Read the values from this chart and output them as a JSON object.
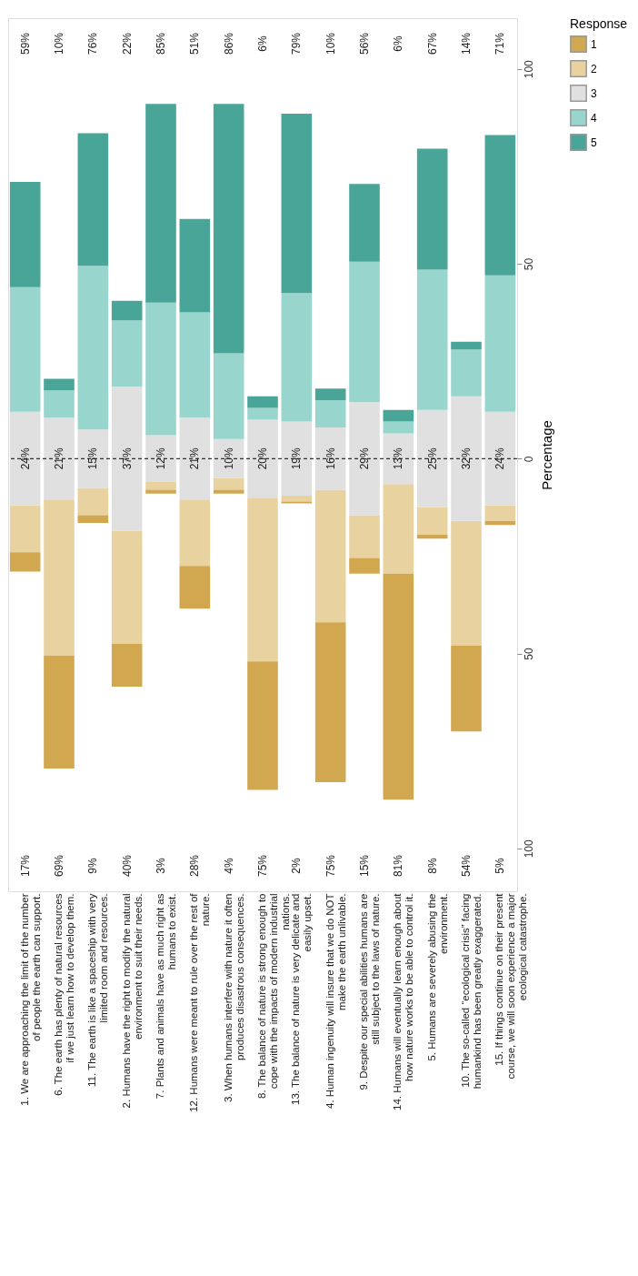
{
  "chart_data": {
    "type": "bar",
    "stacked": true,
    "ylabel": "Percentage",
    "legend_title": "Response",
    "legend": "right",
    "grid": false,
    "categories": [
      "1. We are approaching the limit of the number of people the earth can support.",
      "6. The earth has plenty of natural resources if we just learn how to develop them.",
      "11. The earth is like a spaceship with very limited room and resources.",
      "2. Humans have the right to modify the natural environment to suit their needs.",
      "7. Plants and animals have as much right as humans to exist.",
      "12. Humans were meant to rule over the rest of nature.",
      "3. When humans interfere with nature it often produces disastrous consequences.",
      "8. The balance of nature is strong enough to cope with the impacts of modern industrial nations.",
      "13. The balance of nature is very delicate and easily upset.",
      "4. Human ingenuity will insure that we do NOT make the earth unlivable.",
      "9. Despite our special abilities humans are still subject to the laws of nature.",
      "14. Humans will eventually learn enough about how nature works to be able to control it.",
      "5. Humans are severely abusing the environment.",
      "10. The so-called “ecological crisis” facing humankind has been greatly exaggerated.",
      "15. If things continue on their present course, we will soon experience a major ecological catastrophe."
    ],
    "series": [
      {
        "name": "3",
        "color": "#e0e0e0",
        "values": [
          12,
          10.5,
          7.5,
          18.5,
          6,
          10.5,
          5,
          10,
          9.5,
          8,
          14.5,
          6.5,
          12.5,
          16,
          12
        ]
      },
      {
        "name": "4",
        "color": "#98d5cc",
        "values": [
          32,
          7,
          42,
          17,
          34,
          27,
          22,
          3,
          33,
          7,
          36,
          3,
          36,
          12,
          35
        ]
      },
      {
        "name": "5",
        "color": "#48a598",
        "values": [
          27,
          3,
          34,
          5,
          51,
          24,
          64,
          3,
          46,
          3,
          20,
          3,
          31,
          2,
          36
        ]
      },
      {
        "color": "#e0e0e0",
        "values": [
          -12,
          -10.5,
          -7.5,
          -18.5,
          -6,
          -10.5,
          -5,
          -10,
          -9.5,
          -8,
          -14.5,
          -6.5,
          -12.5,
          -16,
          -12
        ]
      },
      {
        "name": "2",
        "color": "#e8d3a0",
        "values": [
          -12,
          -40,
          -7,
          -29,
          -2,
          -17,
          -3,
          -42,
          -1.5,
          -34,
          -11,
          -23,
          -7,
          -32,
          -4
        ]
      },
      {
        "name": "1",
        "color": "#d1a750",
        "values": [
          -5,
          -29,
          -2,
          -11,
          -1,
          -11,
          -1,
          -33,
          -0.5,
          -41,
          -4,
          -58,
          -1,
          -22,
          -1
        ]
      }
    ],
    "ylim": [
      -111,
      113
    ],
    "yticks": [
      {
        "value": -100,
        "label": "100"
      },
      {
        "value": -50,
        "label": "50"
      },
      0,
      50,
      100
    ],
    "ref_lines": [
      {
        "axis": "y",
        "value": 0,
        "line_style": "dashed",
        "color": "#000000"
      }
    ],
    "annotations": [
      "59%",
      "10%",
      "76%",
      "22%",
      "85%",
      "51%",
      "86%",
      "6%",
      "79%",
      "10%",
      "56%",
      "6%",
      "67%",
      "14%",
      "71%",
      "24%",
      "21%",
      "15%",
      "37%",
      "12%",
      "21%",
      "10%",
      "20%",
      "19%",
      "16%",
      "29%",
      "13%",
      "25%",
      "32%",
      "24%",
      "17%",
      "69%",
      "9%",
      "40%",
      "3%",
      "28%",
      "4%",
      "75%",
      "2%",
      "75%",
      "15%",
      "81%",
      "8%",
      "54%",
      "5%"
    ]
  }
}
